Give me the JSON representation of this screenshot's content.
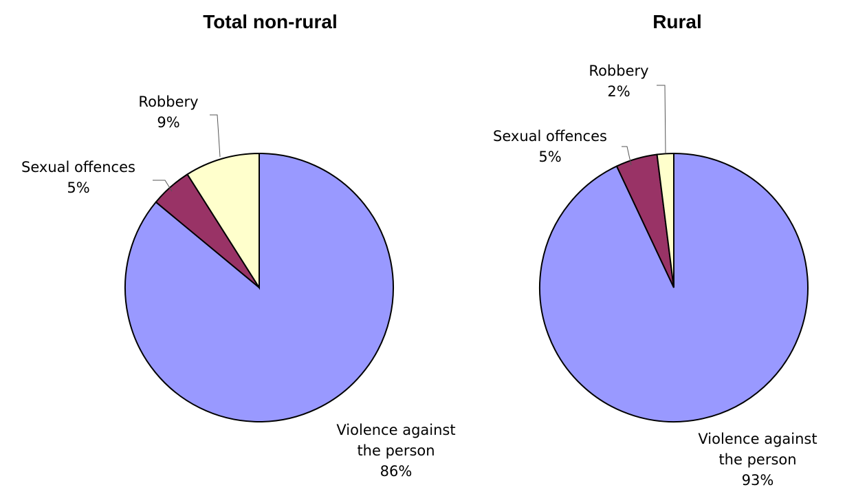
{
  "chart_data": [
    {
      "type": "pie",
      "title": "Total non-rural",
      "slices": [
        {
          "label": "Violence against the person",
          "label_lines": [
            "Violence against",
            "the person"
          ],
          "value": 86,
          "value_label": "86%",
          "color": "#9999ff"
        },
        {
          "label": "Sexual offences",
          "label_lines": [
            "Sexual offences"
          ],
          "value": 5,
          "value_label": "5%",
          "color": "#993366"
        },
        {
          "label": "Robbery",
          "label_lines": [
            "Robbery"
          ],
          "value": 9,
          "value_label": "9%",
          "color": "#ffffcc"
        }
      ]
    },
    {
      "type": "pie",
      "title": "Rural",
      "slices": [
        {
          "label": "Violence against the person",
          "label_lines": [
            "Violence against",
            "the person"
          ],
          "value": 93,
          "value_label": "93%",
          "color": "#9999ff"
        },
        {
          "label": "Sexual offences",
          "label_lines": [
            "Sexual offences"
          ],
          "value": 5,
          "value_label": "5%",
          "color": "#993366"
        },
        {
          "label": "Robbery",
          "label_lines": [
            "Robbery"
          ],
          "value": 2,
          "value_label": "2%",
          "color": "#ffffcc"
        }
      ]
    }
  ]
}
